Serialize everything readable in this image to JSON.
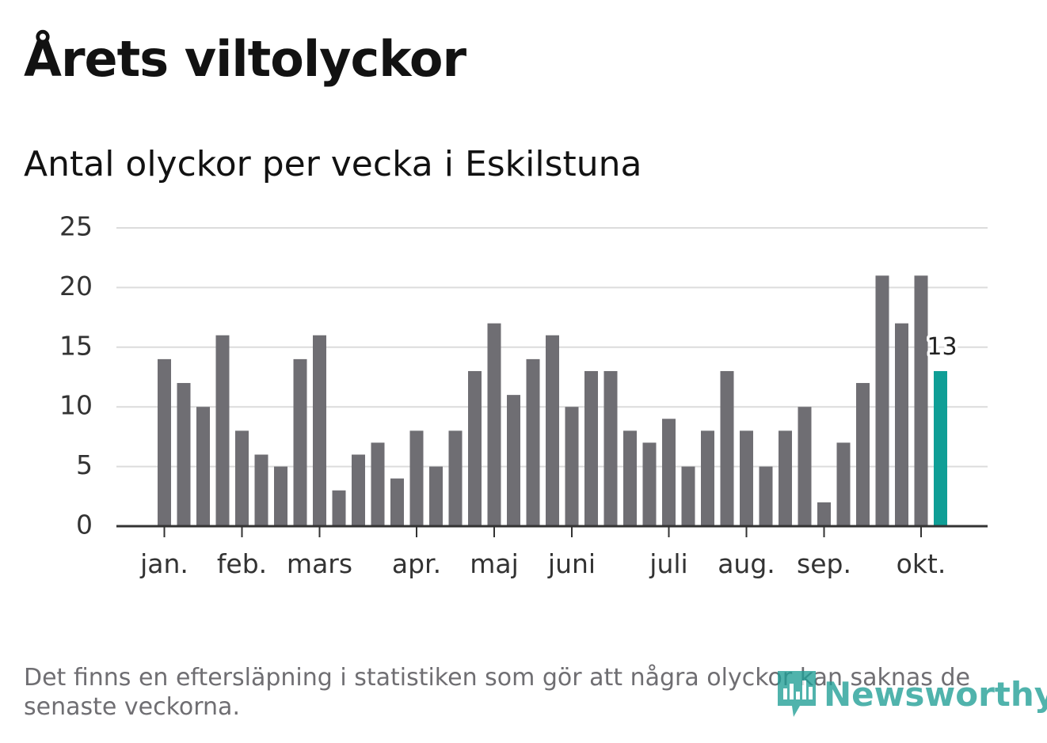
{
  "header": {
    "title": "Årets viltolyckor",
    "subtitle": "Antal olyckor per vecka i Eskilstuna"
  },
  "footer": {
    "note": "Det finns en eftersläpning i statistiken som gör att några olyckor kan saknas de senaste veckorna.",
    "brand": "Newsworthy"
  },
  "colors": {
    "bar": "#6f6e73",
    "highlight": "#0f9e96",
    "grid": "#dcdcdc",
    "axis": "#333333",
    "text": "#333333"
  },
  "chart_data": {
    "type": "bar",
    "values": [
      14,
      12,
      10,
      16,
      8,
      6,
      5,
      14,
      16,
      3,
      6,
      7,
      4,
      8,
      5,
      8,
      13,
      17,
      11,
      14,
      16,
      10,
      13,
      13,
      8,
      7,
      9,
      5,
      8,
      13,
      8,
      5,
      8,
      10,
      2,
      7,
      12,
      21,
      17,
      21,
      13
    ],
    "highlight_last": true,
    "last_value_label": "13",
    "ylim": [
      0,
      25
    ],
    "yticks": [
      0,
      5,
      10,
      15,
      20,
      25
    ],
    "month_labels": [
      {
        "label": "jan.",
        "bar": 0
      },
      {
        "label": "feb.",
        "bar": 4
      },
      {
        "label": "mars",
        "bar": 8
      },
      {
        "label": "apr.",
        "bar": 13
      },
      {
        "label": "maj",
        "bar": 17
      },
      {
        "label": "juni",
        "bar": 21
      },
      {
        "label": "juli",
        "bar": 26
      },
      {
        "label": "aug.",
        "bar": 30
      },
      {
        "label": "sep.",
        "bar": 34
      },
      {
        "label": "okt.",
        "bar": 39
      }
    ],
    "grid": true,
    "legend": "none"
  }
}
